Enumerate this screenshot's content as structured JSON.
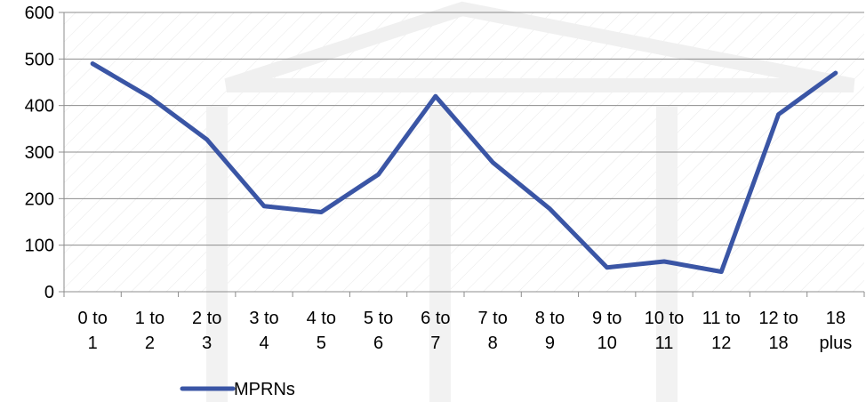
{
  "chart_data": {
    "type": "line",
    "title": "",
    "xlabel": "",
    "ylabel": "",
    "categories": [
      [
        "0 to",
        "1"
      ],
      [
        "1 to",
        "2"
      ],
      [
        "2 to",
        "3"
      ],
      [
        "3 to",
        "4"
      ],
      [
        "4 to",
        "5"
      ],
      [
        "5 to",
        "6"
      ],
      [
        "6 to",
        "7"
      ],
      [
        "7 to",
        "8"
      ],
      [
        "8 to",
        "9"
      ],
      [
        "9 to",
        "10"
      ],
      [
        "10 to",
        "11"
      ],
      [
        "11 to",
        "12"
      ],
      [
        "12 to",
        "18"
      ],
      [
        "18",
        "plus"
      ]
    ],
    "series": [
      {
        "name": "MPRNs",
        "color": "#3a55a5",
        "values": [
          490,
          418,
          327,
          184,
          171,
          252,
          420,
          278,
          178,
          52,
          65,
          43,
          381,
          470
        ]
      }
    ],
    "ylim": [
      0,
      600
    ],
    "yticks": [
      0,
      100,
      200,
      300,
      400,
      500,
      600
    ],
    "grid": true,
    "legend": "bottom-left"
  }
}
